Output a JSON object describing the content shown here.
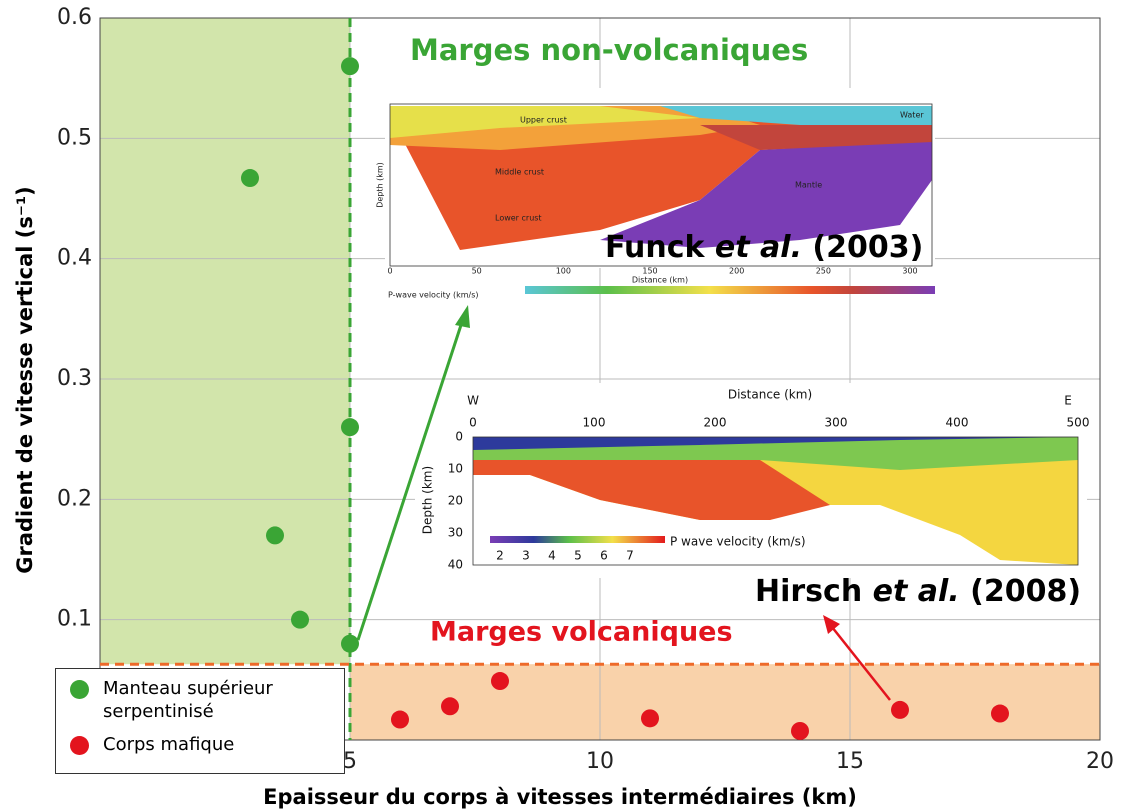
{
  "chart_data": {
    "type": "scatter",
    "xlabel": "Epaisseur du corps à vitesses intermédiaires (km)",
    "ylabel": "Gradient de vitesse vertical (s⁻¹)",
    "xlim": [
      0,
      20
    ],
    "xticks": [
      5,
      10,
      15,
      20
    ],
    "ylim": [
      0,
      0.6
    ],
    "yticks": [
      0.1,
      0.2,
      0.3,
      0.4,
      0.5,
      0.6
    ],
    "grid": true,
    "legend": "lower left",
    "series": [
      {
        "name": "Manteau supérieur serpentinisé",
        "color": "#3aa535",
        "x": [
          5,
          3,
          5,
          3.5,
          4,
          5
        ],
        "values": [
          0.56,
          0.467,
          0.26,
          0.17,
          0.1,
          0.08
        ]
      },
      {
        "name": "Corps mafique",
        "color": "#e3141e",
        "x": [
          6,
          7,
          8,
          11,
          14,
          16,
          18
        ],
        "values": [
          0.017,
          0.028,
          0.049,
          0.018,
          0.0075,
          0.025,
          0.022
        ]
      }
    ],
    "regions": [
      {
        "xlim": [
          0,
          5
        ],
        "ylim": [
          0.063,
          0.6
        ],
        "color": "#d2e5ab",
        "edge": "#3aa535"
      },
      {
        "xlim": [
          5,
          20
        ],
        "ylim": [
          0,
          0.063
        ],
        "color": "#f9d2aa",
        "edge": "#ee6a2a"
      }
    ],
    "annotations": {
      "non_volcanic": "Marges non-volcaniques",
      "volcanic": "Marges volcaniques",
      "funck": [
        "Funck",
        "et al.",
        "(2003)"
      ],
      "hirsch": [
        "Hirsch",
        "et al.",
        "(2008)"
      ]
    },
    "insets": [
      {
        "labels": [
          "Upper crust",
          "Middle crust",
          "Lower crust",
          "Mantle",
          "Water",
          "Depth (km)",
          "Distance (km)",
          "P-wave velocity (km/s)"
        ],
        "xticks": [
          0,
          50,
          100,
          150,
          200,
          250,
          300
        ]
      },
      {
        "labels": [
          "Distance (km)",
          "W",
          "E",
          "Depth (km)",
          "P wave velocity (km/s)"
        ],
        "xticks": [
          0,
          100,
          200,
          300,
          400,
          500
        ],
        "yticks": [
          0,
          10,
          20,
          30,
          40
        ],
        "cticks": [
          2,
          3,
          4,
          5,
          6,
          7
        ]
      }
    ]
  }
}
